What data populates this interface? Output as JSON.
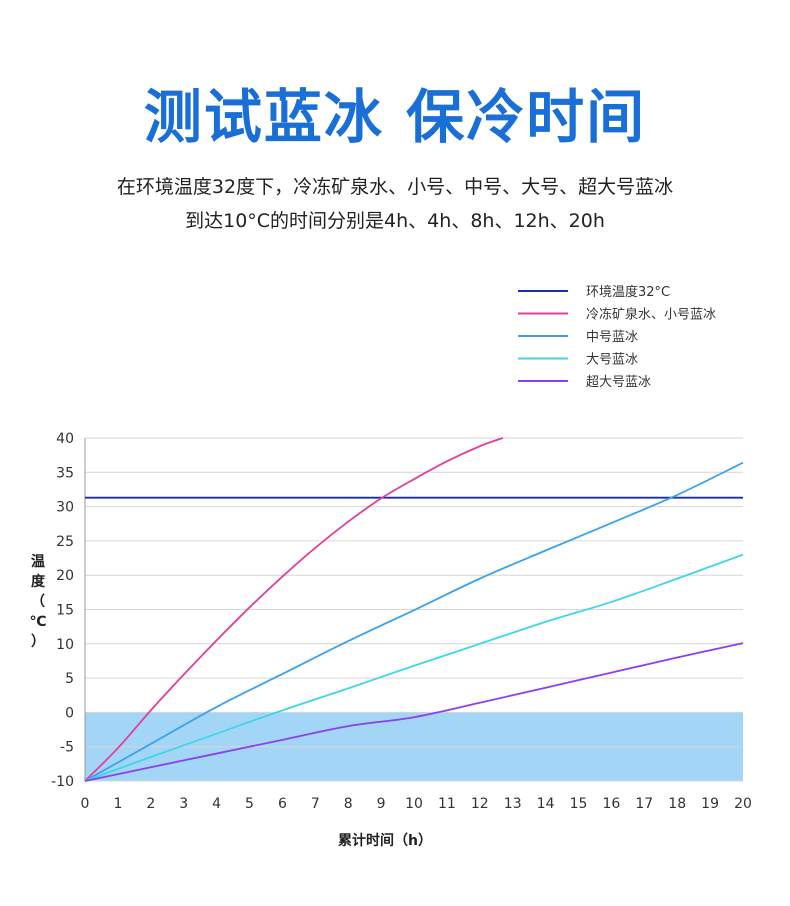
{
  "header": {
    "title": "测试蓝冰 保冷时间",
    "subtitle_line1": "在环境温度32度下，冷冻矿泉水、小号、中号、大号、超大号蓝冰",
    "subtitle_line2": "到达10°C的时间分别是4h、4h、8h、12h、20h"
  },
  "chart_data": {
    "type": "line",
    "xlabel": "累计时间（h）",
    "ylabel": "温度（℃）",
    "xlim": [
      0,
      20
    ],
    "ylim": [
      -10,
      40
    ],
    "x_ticks": [
      0,
      1,
      2,
      3,
      4,
      5,
      6,
      7,
      8,
      9,
      10,
      11,
      12,
      13,
      14,
      15,
      16,
      17,
      18,
      19,
      20
    ],
    "y_ticks": [
      40,
      35,
      30,
      25,
      20,
      15,
      10,
      5,
      0,
      -5,
      -10
    ],
    "grid": true,
    "legend_position": "top-right",
    "shaded_band": {
      "y_from": -10,
      "y_to": 0,
      "color": "#9ed3f7"
    },
    "series": [
      {
        "name": "环境温度32°C",
        "color": "#1a2fa8",
        "x": [
          0,
          20
        ],
        "y": [
          31.3,
          31.3
        ]
      },
      {
        "name": "冷冻矿泉水、小号蓝冰",
        "color": "#e0409a",
        "x": [
          0,
          1,
          2,
          3,
          4,
          5,
          6,
          7,
          8,
          9,
          10,
          11,
          12,
          12.7
        ],
        "y": [
          -10,
          -5.2,
          0.3,
          5.5,
          10.5,
          15.3,
          19.8,
          24.0,
          27.8,
          31.2,
          34.0,
          36.6,
          38.8,
          40
        ]
      },
      {
        "name": "中号蓝冰",
        "color": "#3aa2ee",
        "x": [
          0,
          2,
          4,
          6,
          8,
          10,
          12,
          14,
          16,
          18,
          20
        ],
        "y": [
          -10,
          -4.6,
          0.8,
          5.6,
          10.4,
          14.9,
          19.5,
          23.6,
          27.6,
          31.7,
          36.4
        ]
      },
      {
        "name": "大号蓝冰",
        "color": "#3fd6e8",
        "x": [
          0,
          2,
          4,
          6,
          8,
          10,
          12,
          14,
          16,
          18,
          20
        ],
        "y": [
          -10,
          -6.5,
          -3.1,
          0.3,
          3.5,
          6.8,
          10.0,
          13.2,
          16.1,
          19.5,
          23.0
        ]
      },
      {
        "name": "超大号蓝冰",
        "color": "#8c3ff0",
        "x": [
          0,
          2,
          4,
          6,
          8,
          10,
          12,
          14,
          16,
          18,
          20
        ],
        "y": [
          -10,
          -8.0,
          -6.0,
          -4.0,
          -2.0,
          -0.7,
          1.4,
          3.6,
          5.8,
          8.0,
          10.1
        ]
      }
    ]
  }
}
